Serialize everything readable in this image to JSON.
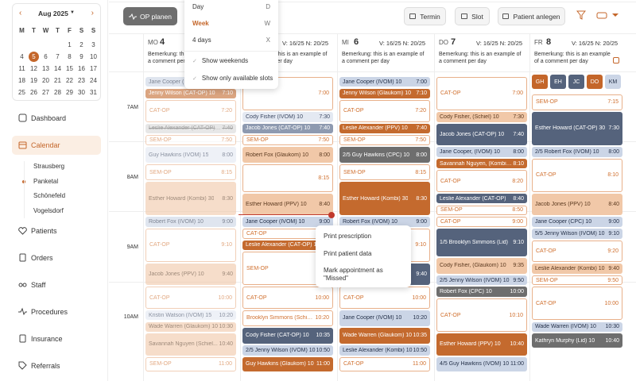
{
  "sidebar": {
    "month": "Aug 2025",
    "weekdays": [
      "M",
      "T",
      "W",
      "T",
      "F",
      "S",
      "S"
    ],
    "weeks": [
      [
        null,
        null,
        null,
        null,
        1,
        2,
        3
      ],
      [
        4,
        5,
        6,
        7,
        8,
        9,
        10
      ],
      [
        11,
        12,
        13,
        14,
        15,
        16,
        17
      ],
      [
        18,
        19,
        20,
        21,
        22,
        23,
        24
      ],
      [
        25,
        26,
        27,
        28,
        29,
        30,
        31
      ]
    ],
    "selected_date": 5,
    "nav": [
      {
        "label": "Dashboard",
        "icon": "grid"
      },
      {
        "label": "Calendar",
        "icon": "cal",
        "active": true
      }
    ],
    "locations": [
      "Strausberg",
      "Panketal",
      "Schönefeld",
      "Vogelsdorf"
    ],
    "active_location": "Panketal",
    "nav2": [
      {
        "label": "Patients",
        "icon": "heart"
      },
      {
        "label": "Orders",
        "icon": "doc"
      },
      {
        "label": "Staff",
        "icon": "glasses"
      },
      {
        "label": "Procedures",
        "icon": "pulse"
      },
      {
        "label": "Insurance",
        "icon": "doc"
      },
      {
        "label": "Referrals",
        "icon": "tag"
      }
    ]
  },
  "toolbar": {
    "plan": "OP planen",
    "buttons": [
      "Termin",
      "Slot",
      "Patient anlegen"
    ]
  },
  "view_menu": {
    "views": [
      {
        "label": "Day",
        "key": "D"
      },
      {
        "label": "Week",
        "key": "W"
      },
      {
        "label": "4 days",
        "key": "X"
      }
    ],
    "active": "Week",
    "options": [
      "Show weekends",
      "Show only available slots"
    ]
  },
  "times": [
    "7AM",
    "8AM",
    "9AM",
    "10AM"
  ],
  "days": [
    {
      "weekday": "MO",
      "date": "4",
      "stats": "V: 16/25 N: 20/25",
      "comment": "Bemerkung: this is an example of a comment per day",
      "appointments": [
        {
          "label": "Jane Cooper (IVOM) 10",
          "style": "blue"
        },
        {
          "label": "Jenny Wilson (CAT-OP) 10",
          "time": "7:10",
          "style": "orange"
        },
        {
          "label": "CAT-OP",
          "time": "7:20",
          "style": "outline"
        },
        {
          "label": "Leslie Alexander (CAT-OP) 10",
          "time": "7:40",
          "style": "strike"
        },
        {
          "label": "SEM-OP",
          "time": "7:50",
          "style": "outline"
        },
        {
          "label": "Guy Hawkins (IVOM) 15",
          "time": "8:00",
          "style": "light"
        },
        {
          "label": "SEM-OP",
          "time": "8:15",
          "style": "outline"
        },
        {
          "label": "Esther Howard (Kombi) 30",
          "time": "8:30",
          "style": "peach"
        },
        {
          "label": "Robert Fox (IVOM) 10",
          "time": "9:00",
          "style": "blue"
        },
        {
          "label": "CAT-OP",
          "time": "9:10",
          "style": "outline"
        },
        {
          "label": "Jacob Jones (PPV) 10",
          "time": "9:40",
          "style": "peach"
        },
        {
          "label": "CAT-OP",
          "time": "10:00",
          "style": "outline"
        },
        {
          "label": "Kristin Watson (IVOM) 15",
          "time": "10:20",
          "style": "light"
        },
        {
          "label": "Wade Warren (Glaukom) 10",
          "time": "10:30",
          "style": "peach"
        },
        {
          "label": "Savannah Nguyen (Schiel...",
          "time": "10:40",
          "style": "peach"
        },
        {
          "label": "SEM-OP",
          "time": "11:00",
          "style": "outline"
        }
      ]
    },
    {
      "stats": "V: 16/25 N: 20/25",
      "comment": "Bemerkung: this is an example of a comment per day",
      "appointments": [
        {
          "time": "7:00",
          "style": "outline"
        },
        {
          "label": "Cody Fisher (IVOM) 10",
          "time": "7:30",
          "style": "light"
        },
        {
          "label": "Jacob Jones (CAT-OP) 10",
          "time": "7:40",
          "style": "slate"
        },
        {
          "label": "SEM-OP",
          "time": "7:50",
          "style": "outline"
        },
        {
          "label": "Robert Fox (Glaukom) 10",
          "time": "8:00",
          "style": "peach"
        },
        {
          "time": "8:15",
          "style": "outline"
        },
        {
          "label": "Esther Howard (PPV) 10",
          "time": "8:40",
          "style": "peach"
        },
        {
          "label": "Jane Cooper (IVOM) 10",
          "time": "9:00",
          "style": "blue"
        },
        {
          "label": "3/5 Savannah Nguyen (IVOM) 10",
          "style": "blue"
        },
        {
          "label": "CAT-OP",
          "time": "9:10",
          "style": "outline"
        },
        {
          "label": "Leslie Alexander (CAT-OP) 10",
          "style": "orange"
        },
        {
          "label": "SEM-OP",
          "style": "outline"
        },
        {
          "label": "CAT-OP",
          "time": "10:00",
          "style": "outline"
        },
        {
          "label": "Brooklyn Simmons (Schiel...",
          "time": "10:20",
          "style": "outline"
        },
        {
          "label": "Cody Fisher (CAT-OP) 10",
          "time": "10:35",
          "style": "navy"
        },
        {
          "label": "2/5 Jenny Wilson (IVOM) 10",
          "time": "10:50",
          "style": "blue"
        },
        {
          "label": "Guy Hawkins (Glaukom) 10",
          "time": "11:00",
          "style": "orange"
        }
      ]
    },
    {
      "weekday": "MI",
      "date": "6",
      "stats": "V: 16/25 N: 20/25",
      "comment": "Bemerkung: this is an example of a comment per day",
      "appointments": [
        {
          "label": "Jane Cooper (IVOM) 10",
          "time": "7:00",
          "style": "blue"
        },
        {
          "label": "Jenny Wilson (Glaukom) 10",
          "time": "7:10",
          "style": "orange"
        },
        {
          "label": "CAT-OP",
          "time": "7:20",
          "style": "outline"
        },
        {
          "label": "Leslie Alexander (PPV) 10",
          "time": "7:40",
          "style": "orange"
        },
        {
          "label": "SEM-OP",
          "time": "7:50",
          "style": "outline"
        },
        {
          "label": "2/5 Guy Hawkins (CPC) 10",
          "time": "8:00",
          "style": "gray"
        },
        {
          "label": "SEM-OP",
          "time": "8:15",
          "style": "outline"
        },
        {
          "label": "Esther Howard (Kombi) 30",
          "time": "8:30",
          "style": "orange"
        },
        {
          "label": "Robert Fox (IVOM) 10",
          "time": "9:00",
          "style": "blue"
        },
        {
          "time": "9:10",
          "style": "outline"
        },
        {
          "time": "9:40",
          "style": "navy"
        },
        {
          "label": "CAT-OP",
          "time": "10:00",
          "style": "outline"
        },
        {
          "label": "Jane Cooper (IVOM) 10",
          "time": "10:20",
          "style": "blue"
        },
        {
          "label": "Wade Warren (Glaukom) 10",
          "time": "10:35",
          "style": "orange"
        },
        {
          "label": "Leslie Alexander (Kombi) 10",
          "time": "10:50",
          "style": "blue"
        },
        {
          "label": "CAT-OP",
          "time": "11:00",
          "style": "outline"
        }
      ]
    },
    {
      "weekday": "DO",
      "date": "7",
      "stats": "V: 16/25 N: 20/25",
      "comment": "Bemerkung: this is an example of a comment per day",
      "appointments": [
        {
          "label": "CAT-OP",
          "time": "7:00",
          "style": "outline"
        },
        {
          "label": "Cody Fisher, (Schiel) 10",
          "time": "7:30",
          "style": "peach"
        },
        {
          "label": "Jacob Jones (CAT-OP) 10",
          "time": "7:40",
          "style": "navy"
        },
        {
          "label": "Jane Cooper, (IVOM) 10",
          "time": "8:00",
          "style": "blue"
        },
        {
          "label": "Savannah Nguyen, (Kombi) 10",
          "time": "8:10",
          "style": "orange"
        },
        {
          "label": "CAT-OP",
          "time": "8:20",
          "style": "outline"
        },
        {
          "label": "Leslie Alexander (CAT-OP)",
          "time": "8:40",
          "style": "navy"
        },
        {
          "label": "SEM-OP",
          "time": "8:50",
          "style": "outline"
        },
        {
          "label": "CAT-OP",
          "time": "9:00",
          "style": "outline"
        },
        {
          "label": "1/5 Brooklyn Simmons (Lid)",
          "time": "9:10",
          "style": "navy"
        },
        {
          "label": "Cody Fisher, (Glaukom) 10",
          "time": "9:35",
          "style": "peach"
        },
        {
          "label": "2/5 Jenny Wilson (IVOM) 10",
          "time": "9:50",
          "style": "blue"
        },
        {
          "label": "Robert Fox (CPC) 10",
          "time": "10:00",
          "style": "gray"
        },
        {
          "label": "CAT-OP",
          "time": "10:10",
          "style": "outline"
        },
        {
          "label": "Esther Howard (PPV) 10",
          "time": "10:40",
          "style": "orange"
        },
        {
          "label": "4/5 Guy Hawkins (IVOM) 10",
          "time": "11:00",
          "style": "blue"
        }
      ]
    },
    {
      "weekday": "FR",
      "date": "8",
      "stats": "V: 16/25 N: 20/25",
      "comment": "Bemerkung: this is an example of a comment per day",
      "chips": [
        "GH",
        "EH",
        "JC",
        "DO",
        "KM"
      ],
      "appointments": [
        {
          "label": "SEM-OP",
          "time": "7:15",
          "style": "outline"
        },
        {
          "label": "Esther Howard (CAT-OP) 30",
          "time": "7:30",
          "style": "navy"
        },
        {
          "label": "2/5 Robert Fox (IVOM) 10",
          "time": "8:00",
          "style": "blue"
        },
        {
          "label": "CAT-OP",
          "time": "8:10",
          "style": "outline"
        },
        {
          "label": "Jacob Jones (PPV) 10",
          "time": "8:40",
          "style": "peach"
        },
        {
          "label": "Jane Cooper (CPC) 10",
          "time": "9:00",
          "style": "blue"
        },
        {
          "label": "5/5 Jenny Wilson (IVOM) 10",
          "time": "9:10",
          "style": "blue"
        },
        {
          "label": "CAT-OP",
          "time": "9:20",
          "style": "outline"
        },
        {
          "label": "Leslie Alexander (Kombi) 10",
          "time": "9:40",
          "style": "peach"
        },
        {
          "label": "SEM-OP",
          "time": "9:50",
          "style": "outline"
        },
        {
          "label": "CAT-OP",
          "time": "10:00",
          "style": "outline"
        },
        {
          "label": "Wade Warren (IVOM) 10",
          "time": "10:30",
          "style": "blue"
        },
        {
          "label": "Kathryn Murphy (Lid) 10",
          "time": "10:40",
          "style": "gray"
        }
      ]
    }
  ],
  "context_menu": [
    "Print prescription",
    "Print patient data",
    "Mark appointment as \"Missed\""
  ]
}
